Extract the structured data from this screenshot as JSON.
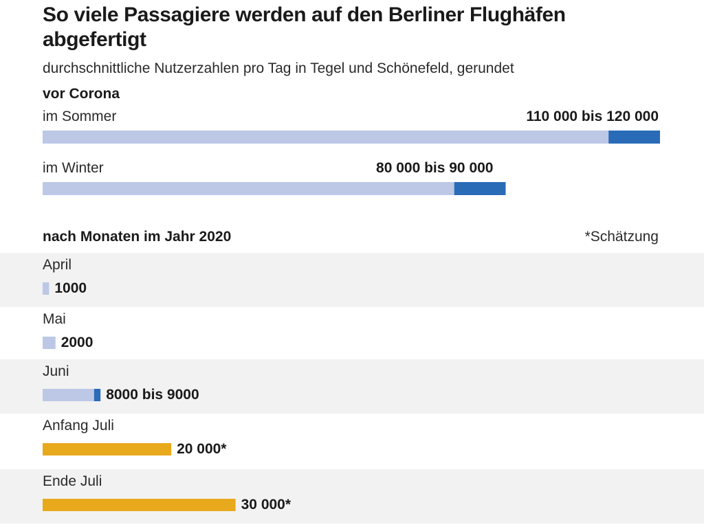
{
  "title": "So viele Passagiere werden auf den Berliner Flughäfen abgefertigt",
  "subtitle": "durchschnittliche Nutzerzahlen pro Tag in Tegel und Schönefeld, gerundet",
  "colors": {
    "range_low": "#bcc8e6",
    "range_high": "#2a6bb8",
    "estimate": "#e9a91c",
    "band": "#f2f2f2"
  },
  "chart_data": [
    {
      "type": "bar",
      "orientation": "horizontal",
      "heading": "vor Corona",
      "categories": [
        "im Sommer",
        "im Winter"
      ],
      "ranges": [
        {
          "low": 110000,
          "high": 120000
        },
        {
          "low": 80000,
          "high": 90000
        }
      ],
      "value_labels": [
        "110 000 bis 120 000",
        "80 000 bis 90 000"
      ],
      "xlim": [
        0,
        120000
      ]
    },
    {
      "type": "bar",
      "orientation": "horizontal",
      "heading": "nach Monaten im Jahr 2020",
      "note": "*Schätzung",
      "categories": [
        "April",
        "Mai",
        "Juni",
        "Anfang Juli",
        "Ende Juli"
      ],
      "values": [
        {
          "low": 1000,
          "high": 1000,
          "estimate": false
        },
        {
          "low": 2000,
          "high": 2000,
          "estimate": false
        },
        {
          "low": 8000,
          "high": 9000,
          "estimate": false
        },
        {
          "low": 20000,
          "high": 20000,
          "estimate": true
        },
        {
          "low": 30000,
          "high": 30000,
          "estimate": true
        }
      ],
      "value_labels": [
        "1000",
        "2000",
        "8000 bis 9000",
        "20 000*",
        "30 000*"
      ],
      "xlim": [
        0,
        120000
      ]
    }
  ]
}
